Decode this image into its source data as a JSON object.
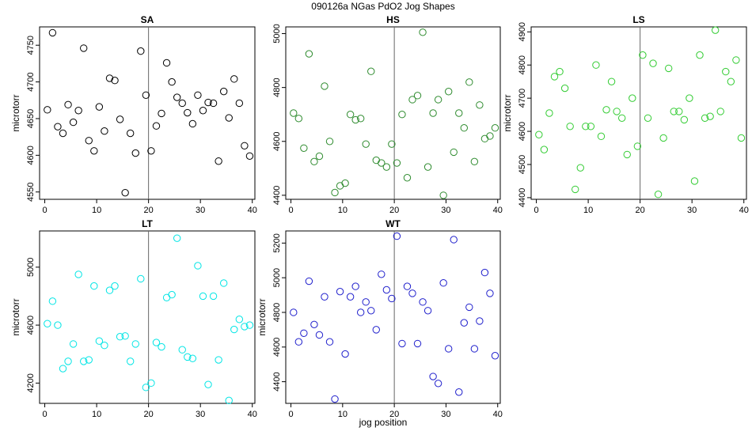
{
  "figure": {
    "title": "090126a   NGas PdO2 Jog Shapes",
    "xlabel": "jog position"
  },
  "chart_data": [
    {
      "type": "scatter",
      "title": "SA",
      "ylabel": "microtorr",
      "color": "#000000",
      "xlim": [
        -1,
        40.5
      ],
      "ylim": [
        4540,
        4775
      ],
      "xticks": [
        0,
        10,
        20,
        30,
        40
      ],
      "yticks": [
        4550,
        4600,
        4650,
        4700,
        4750
      ],
      "vline": 20,
      "x": [
        0.5,
        1.5,
        2.5,
        3.5,
        4.5,
        5.5,
        6.5,
        7.5,
        8.5,
        9.5,
        10.5,
        11.5,
        12.5,
        13.5,
        14.5,
        15.5,
        16.5,
        17.5,
        18.5,
        19.5,
        20.5,
        21.5,
        22.5,
        23.5,
        24.5,
        25.5,
        26.5,
        27.5,
        28.5,
        29.5,
        30.5,
        31.5,
        32.5,
        33.5,
        34.5,
        35.5,
        36.5,
        37.5,
        38.5,
        39.5
      ],
      "y": [
        4662,
        4767,
        4639,
        4630,
        4669,
        4645,
        4661,
        4746,
        4620,
        4606,
        4666,
        4633,
        4705,
        4702,
        4649,
        4549,
        4630,
        4603,
        4742,
        4682,
        4606,
        4640,
        4657,
        4726,
        4700,
        4679,
        4671,
        4658,
        4643,
        4682,
        4661,
        4672,
        4671,
        4592,
        4687,
        4651,
        4704,
        4671,
        4613,
        4599
      ]
    },
    {
      "type": "scatter",
      "title": "HS",
      "ylabel": "",
      "color": "#2e8b2e",
      "xlim": [
        -1,
        40.5
      ],
      "ylim": [
        4385,
        5025
      ],
      "xticks": [
        0,
        10,
        20,
        30,
        40
      ],
      "yticks": [
        4400,
        4600,
        4800,
        5000
      ],
      "vline": 20,
      "x": [
        0.5,
        1.5,
        2.5,
        3.5,
        4.5,
        5.5,
        6.5,
        7.5,
        8.5,
        9.5,
        10.5,
        11.5,
        12.5,
        13.5,
        14.5,
        15.5,
        16.5,
        17.5,
        18.5,
        19.5,
        20.5,
        21.5,
        22.5,
        23.5,
        24.5,
        25.5,
        26.5,
        27.5,
        28.5,
        29.5,
        30.5,
        31.5,
        32.5,
        33.5,
        34.5,
        35.5,
        36.5,
        37.5,
        38.5,
        39.5
      ],
      "y": [
        4705,
        4685,
        4575,
        4925,
        4525,
        4545,
        4805,
        4600,
        4410,
        4435,
        4445,
        4700,
        4680,
        4685,
        4590,
        4860,
        4530,
        4520,
        4505,
        4590,
        4520,
        4700,
        4465,
        4755,
        4770,
        5005,
        4505,
        4705,
        4755,
        4400,
        4785,
        4560,
        4705,
        4650,
        4820,
        4525,
        4735,
        4610,
        4620,
        4650
      ]
    },
    {
      "type": "scatter",
      "title": "LS",
      "ylabel": "microtorr",
      "color": "#33cc33",
      "xlim": [
        -1,
        40.5
      ],
      "ylim": [
        4395,
        4915
      ],
      "xticks": [
        0,
        10,
        20,
        30,
        40
      ],
      "yticks": [
        4400,
        4500,
        4600,
        4700,
        4800,
        4900
      ],
      "vline": 20,
      "x": [
        0.5,
        1.5,
        2.5,
        3.5,
        4.5,
        5.5,
        6.5,
        7.5,
        8.5,
        9.5,
        10.5,
        11.5,
        12.5,
        13.5,
        14.5,
        15.5,
        16.5,
        17.5,
        18.5,
        19.5,
        20.5,
        21.5,
        22.5,
        23.5,
        24.5,
        25.5,
        26.5,
        27.5,
        28.5,
        29.5,
        30.5,
        31.5,
        32.5,
        33.5,
        34.5,
        35.5,
        36.5,
        37.5,
        38.5,
        39.5
      ],
      "y": [
        4590,
        4545,
        4655,
        4765,
        4780,
        4730,
        4615,
        4425,
        4490,
        4615,
        4615,
        4800,
        4585,
        4665,
        4750,
        4660,
        4640,
        4530,
        4700,
        4555,
        4830,
        4640,
        4805,
        4410,
        4580,
        4790,
        4660,
        4660,
        4635,
        4700,
        4450,
        4830,
        4640,
        4645,
        4905,
        4660,
        4780,
        4750,
        4815,
        4580
      ]
    },
    {
      "type": "scatter",
      "title": "LT",
      "ylabel": "microtorr",
      "color": "#00e5e5",
      "xlim": [
        -1,
        40.5
      ],
      "ylim": [
        4060,
        5250
      ],
      "xticks": [
        0,
        10,
        20,
        30,
        40
      ],
      "yticks": [
        4200,
        4600,
        5000
      ],
      "vline": 20,
      "x": [
        0.5,
        1.5,
        2.5,
        3.5,
        4.5,
        5.5,
        6.5,
        7.5,
        8.5,
        9.5,
        10.5,
        11.5,
        12.5,
        13.5,
        14.5,
        15.5,
        16.5,
        17.5,
        18.5,
        19.5,
        20.5,
        21.5,
        22.5,
        23.5,
        24.5,
        25.5,
        26.5,
        27.5,
        28.5,
        29.5,
        30.5,
        31.5,
        32.5,
        33.5,
        34.5,
        35.5,
        36.5,
        37.5,
        38.5,
        39.5
      ],
      "y": [
        4610,
        4765,
        4600,
        4300,
        4350,
        4470,
        4950,
        4350,
        4360,
        4870,
        4490,
        4460,
        4840,
        4870,
        4520,
        4525,
        4350,
        4470,
        4920,
        4170,
        4200,
        4480,
        4450,
        4790,
        4810,
        5200,
        4430,
        4380,
        4370,
        5010,
        4800,
        4190,
        4800,
        4360,
        4890,
        4080,
        4570,
        4640,
        4590,
        4600
      ]
    },
    {
      "type": "scatter",
      "title": "WT",
      "ylabel": "microtorr",
      "color": "#1f1fcc",
      "xlim": [
        -1,
        40.5
      ],
      "ylim": [
        4275,
        5270
      ],
      "xticks": [
        0,
        10,
        20,
        30,
        40
      ],
      "yticks": [
        4400,
        4600,
        4800,
        5000,
        5200
      ],
      "vline": 20,
      "x": [
        0.5,
        1.5,
        2.5,
        3.5,
        4.5,
        5.5,
        6.5,
        7.5,
        8.5,
        9.5,
        10.5,
        11.5,
        12.5,
        13.5,
        14.5,
        15.5,
        16.5,
        17.5,
        18.5,
        19.5,
        20.5,
        21.5,
        22.5,
        23.5,
        24.5,
        25.5,
        26.5,
        27.5,
        28.5,
        29.5,
        30.5,
        31.5,
        32.5,
        33.5,
        34.5,
        35.5,
        36.5,
        37.5,
        38.5,
        39.5
      ],
      "y": [
        4800,
        4630,
        4680,
        4980,
        4730,
        4670,
        4890,
        4630,
        4300,
        4920,
        4560,
        4890,
        4950,
        4800,
        4860,
        4810,
        4700,
        5020,
        4930,
        4880,
        5240,
        4620,
        4950,
        4910,
        4620,
        4860,
        4810,
        4430,
        4390,
        4970,
        4590,
        5220,
        4340,
        4740,
        4830,
        4590,
        4750,
        5030,
        4910,
        4550
      ]
    }
  ]
}
